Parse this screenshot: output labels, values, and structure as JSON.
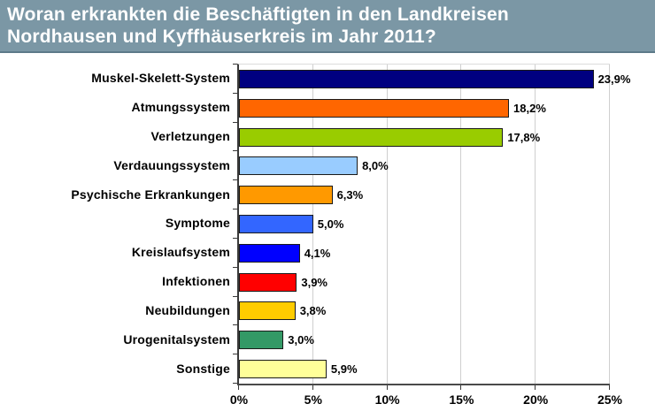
{
  "header": {
    "title_line1": "Woran erkrankten die Beschäftigten in den Landkreisen",
    "title_line2": "Nordhausen und Kyffhäuserkreis im Jahr 2011?",
    "background": "#7b97a5",
    "border_color": "#5d7a89",
    "text_color": "#ffffff"
  },
  "chart_data": {
    "type": "bar",
    "orientation": "horizontal",
    "title": "Woran erkrankten die Beschäftigten in den Landkreisen Nordhausen und Kyffhäuserkreis im Jahr 2011?",
    "categories": [
      "Muskel-Skelett-System",
      "Atmungssystem",
      "Verletzungen",
      "Verdauungssystem",
      "Psychische Erkrankungen",
      "Symptome",
      "Kreislaufsystem",
      "Infektionen",
      "Neubildungen",
      "Urogenitalsystem",
      "Sonstige"
    ],
    "values": [
      23.9,
      18.2,
      17.8,
      8.0,
      6.3,
      5.0,
      4.1,
      3.9,
      3.8,
      3.0,
      5.9
    ],
    "value_labels": [
      "23,9%",
      "18,2%",
      "17,8%",
      "8,0%",
      "6,3%",
      "5,0%",
      "4,1%",
      "3,9%",
      "3,8%",
      "3,0%",
      "5,9%"
    ],
    "bar_colors": [
      "#000080",
      "#ff6600",
      "#99cc00",
      "#99ccff",
      "#ff9900",
      "#3366ff",
      "#0000ff",
      "#ff0000",
      "#ffcc00",
      "#339966",
      "#ffff99"
    ],
    "xlabel": "",
    "ylabel": "",
    "xlim": [
      0,
      25
    ],
    "x_ticks": [
      {
        "value": 0,
        "label": "0%"
      },
      {
        "value": 5,
        "label": "5%"
      },
      {
        "value": 10,
        "label": "10%"
      },
      {
        "value": 15,
        "label": "15%"
      },
      {
        "value": 20,
        "label": "20%"
      },
      {
        "value": 25,
        "label": "25%"
      }
    ],
    "grid": true,
    "gridline_color": "#cfcfcf",
    "bar_border_color": "#1a1a1a",
    "legend": "none"
  }
}
